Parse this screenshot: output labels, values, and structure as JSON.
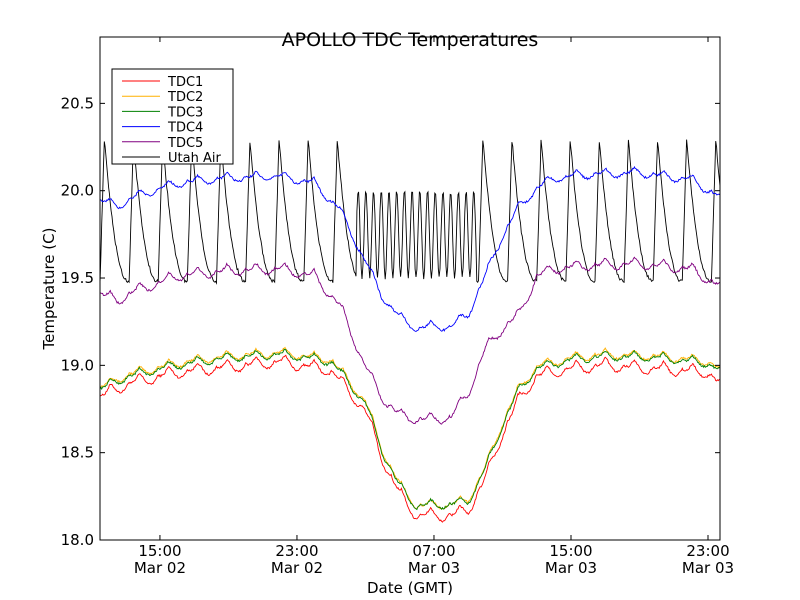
{
  "chart_data": {
    "type": "line",
    "title": "APOLLO TDC Temperatures",
    "xlabel": "Date (GMT)",
    "ylabel": "Temperature (C)",
    "xlim_hours": [
      11.5,
      47.7
    ],
    "ylim": [
      18.0,
      20.88
    ],
    "yticks": [
      {
        "value": 18.0,
        "label": "18.0"
      },
      {
        "value": 18.5,
        "label": "18.5"
      },
      {
        "value": 19.0,
        "label": "19.0"
      },
      {
        "value": 19.5,
        "label": "19.5"
      },
      {
        "value": 20.0,
        "label": "20.0"
      },
      {
        "value": 20.5,
        "label": "20.5"
      }
    ],
    "xticks": [
      {
        "hours": 15,
        "time": "15:00",
        "date": "Mar 02"
      },
      {
        "hours": 23,
        "time": "23:00",
        "date": "Mar 02"
      },
      {
        "hours": 31,
        "time": "07:00",
        "date": "Mar 03"
      },
      {
        "hours": 39,
        "time": "15:00",
        "date": "Mar 03"
      },
      {
        "hours": 47,
        "time": "23:00",
        "date": "Mar 03"
      }
    ],
    "legend_position": "top-left",
    "series": [
      {
        "name": "TDC1",
        "color": "#ff0000",
        "x": [
          11.5,
          13,
          16,
          19,
          22,
          25,
          27,
          28,
          29,
          30,
          31,
          32,
          33,
          34,
          35,
          36,
          37,
          39,
          41,
          44,
          47,
          47.7
        ],
        "y": [
          18.83,
          18.9,
          18.97,
          19.0,
          19.03,
          18.98,
          18.75,
          18.47,
          18.27,
          18.15,
          18.15,
          18.15,
          18.18,
          18.36,
          18.62,
          18.82,
          18.95,
          18.99,
          19.01,
          18.99,
          18.97,
          18.9
        ],
        "ripple_amp": 0.07,
        "ripple_period": 1.7
      },
      {
        "name": "TDC2",
        "color": "#ffb000",
        "x": [
          11.5,
          13,
          16,
          19,
          22,
          25,
          27,
          28,
          29,
          30,
          31,
          32,
          33,
          34,
          35,
          36,
          37,
          39,
          41,
          44,
          47,
          47.7
        ],
        "y": [
          18.88,
          18.95,
          19.02,
          19.06,
          19.08,
          19.04,
          18.8,
          18.52,
          18.32,
          18.2,
          18.21,
          18.21,
          18.24,
          18.42,
          18.68,
          18.88,
          19.0,
          19.05,
          19.07,
          19.06,
          19.03,
          18.98
        ],
        "ripple_amp": 0.05,
        "ripple_period": 1.7
      },
      {
        "name": "TDC3",
        "color": "#008000",
        "x": [
          11.5,
          13,
          16,
          19,
          22,
          25,
          27,
          28,
          29,
          30,
          31,
          32,
          33,
          34,
          35,
          36,
          37,
          39,
          41,
          44,
          47,
          47.7
        ],
        "y": [
          18.87,
          18.94,
          19.01,
          19.05,
          19.07,
          19.03,
          18.79,
          18.51,
          18.31,
          18.2,
          18.21,
          18.21,
          18.23,
          18.41,
          18.67,
          18.87,
          18.99,
          19.04,
          19.06,
          19.05,
          19.02,
          18.97
        ],
        "ripple_amp": 0.05,
        "ripple_period": 1.7
      },
      {
        "name": "TDC4",
        "color": "#0000ff",
        "x": [
          11.5,
          12.5,
          13.5,
          16,
          19,
          22,
          24,
          25.5,
          27,
          28,
          29,
          30,
          31,
          32,
          33,
          34,
          35,
          36,
          37,
          38,
          40,
          43,
          46,
          47.7
        ],
        "y": [
          19.95,
          19.92,
          19.97,
          20.05,
          20.08,
          20.09,
          20.05,
          19.9,
          19.6,
          19.4,
          19.28,
          19.22,
          19.23,
          19.23,
          19.3,
          19.52,
          19.75,
          19.92,
          20.02,
          20.08,
          20.1,
          20.11,
          20.07,
          19.97
        ],
        "ripple_amp": 0.05,
        "ripple_period": 1.7
      },
      {
        "name": "TDC5",
        "color": "#800080",
        "x": [
          11.5,
          12.5,
          13.5,
          16,
          19,
          22,
          24,
          25.5,
          27,
          28,
          29,
          30,
          31,
          32,
          33,
          34,
          35,
          36,
          37,
          38,
          40,
          43,
          46,
          47.7
        ],
        "y": [
          19.42,
          19.38,
          19.43,
          19.52,
          19.55,
          19.56,
          19.52,
          19.35,
          19.0,
          18.82,
          18.72,
          18.7,
          18.7,
          18.71,
          18.85,
          19.1,
          19.22,
          19.3,
          19.52,
          19.56,
          19.58,
          19.59,
          19.56,
          19.46
        ],
        "ripple_amp": 0.06,
        "ripple_period": 1.7
      },
      {
        "name": "Utah Air",
        "color": "#000000",
        "x": [
          11.5,
          47.7
        ],
        "y": [
          19.9,
          19.9
        ],
        "oscillation": {
          "low": 19.48,
          "high": 20.3,
          "period_normal": 1.7,
          "period_fast": 0.45,
          "fast_range": [
            26.5,
            33.5
          ],
          "fast_low": 19.5,
          "fast_high": 20.0
        }
      }
    ]
  }
}
